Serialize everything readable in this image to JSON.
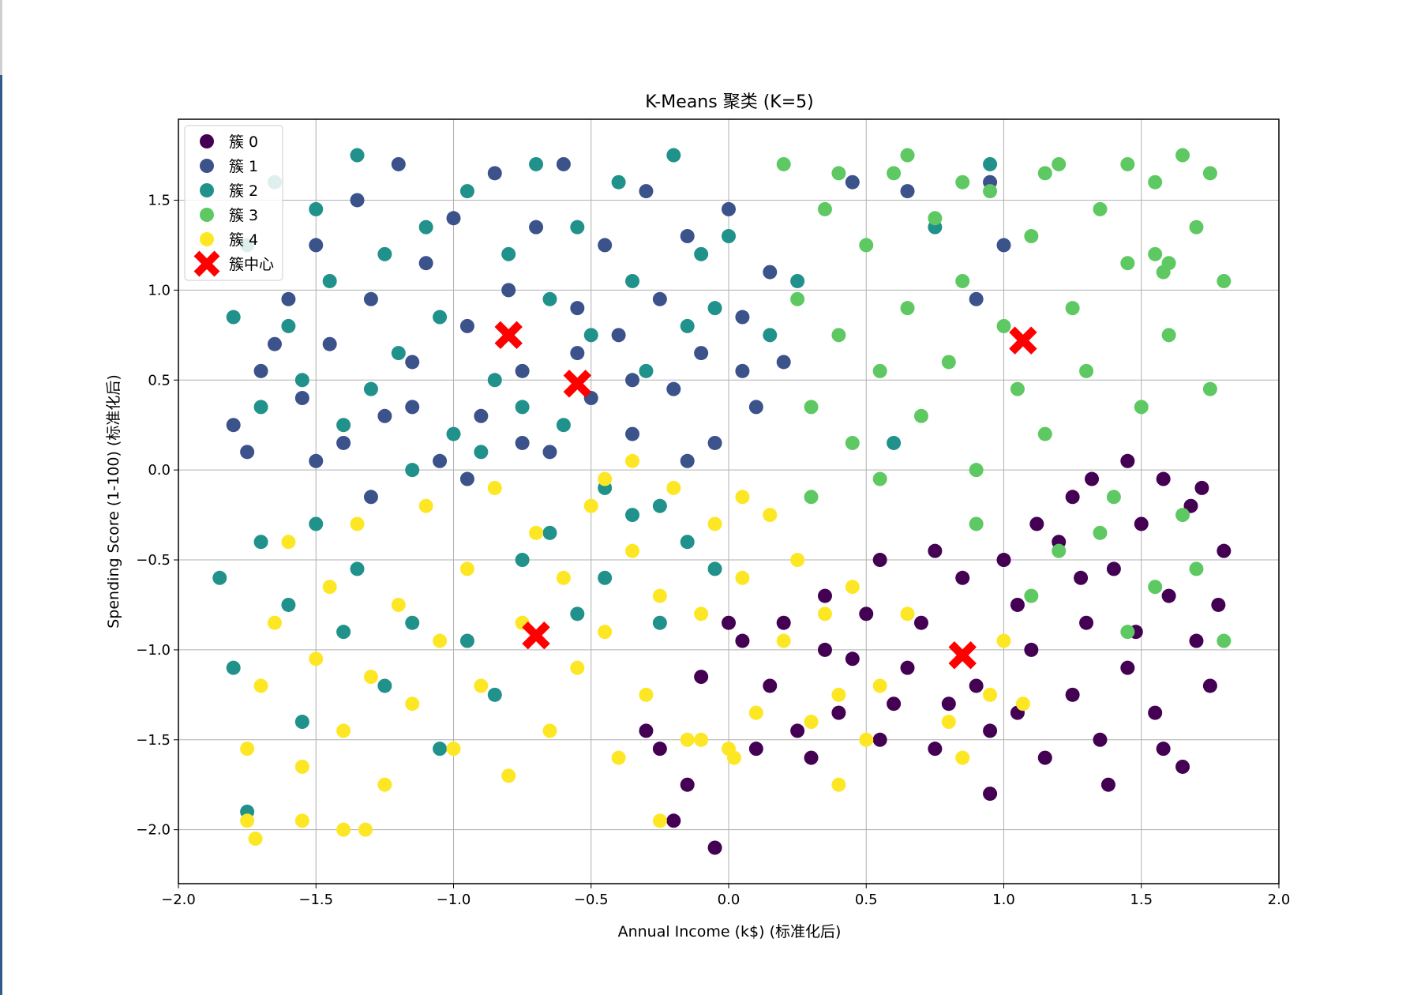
{
  "chart_data": {
    "type": "scatter",
    "title": "K-Means 聚类 (K=5)",
    "xlabel": "Annual Income (k$) (标准化后)",
    "ylabel": "Spending Score (1-100) (标准化后)",
    "xlim": [
      -2.0,
      2.0
    ],
    "ylim": [
      -2.3,
      1.95
    ],
    "xticks": [
      -2.0,
      -1.5,
      -1.0,
      -0.5,
      0.0,
      0.5,
      1.0,
      1.5,
      2.0
    ],
    "xtick_labels": [
      "−2.0",
      "−1.5",
      "−1.0",
      "−0.5",
      "0.0",
      "0.5",
      "1.0",
      "1.5",
      "2.0"
    ],
    "yticks": [
      -2.0,
      -1.5,
      -1.0,
      -0.5,
      0.0,
      0.5,
      1.0,
      1.5
    ],
    "ytick_labels": [
      "−2.0",
      "−1.5",
      "−1.0",
      "−0.5",
      "0.0",
      "0.5",
      "1.0",
      "1.5"
    ],
    "grid": true,
    "legend_position": "top-left",
    "series": [
      {
        "name": "簇 0",
        "color": "#440154",
        "points": [
          [
            0.05,
            -0.95
          ],
          [
            0.15,
            -1.2
          ],
          [
            0.25,
            -1.45
          ],
          [
            0.35,
            -0.7
          ],
          [
            0.45,
            -1.05
          ],
          [
            0.55,
            -0.5
          ],
          [
            0.6,
            -1.3
          ],
          [
            0.7,
            -0.85
          ],
          [
            0.75,
            -1.55
          ],
          [
            0.85,
            -0.6
          ],
          [
            0.9,
            -1.2
          ],
          [
            0.95,
            -1.45
          ],
          [
            1.05,
            -0.75
          ],
          [
            1.1,
            -1.0
          ],
          [
            1.15,
            -1.6
          ],
          [
            1.2,
            -0.4
          ],
          [
            1.25,
            -1.25
          ],
          [
            1.3,
            -0.85
          ],
          [
            1.35,
            -1.5
          ],
          [
            1.4,
            -0.55
          ],
          [
            1.45,
            -1.1
          ],
          [
            1.5,
            -0.3
          ],
          [
            1.55,
            -1.35
          ],
          [
            1.6,
            -0.7
          ],
          [
            1.65,
            -1.65
          ],
          [
            1.7,
            -0.95
          ],
          [
            1.75,
            -1.2
          ],
          [
            1.8,
            -0.45
          ],
          [
            0.2,
            -0.85
          ],
          [
            0.3,
            -1.6
          ],
          [
            0.4,
            -1.35
          ],
          [
            0.5,
            -0.8
          ],
          [
            0.65,
            -1.1
          ],
          [
            0.8,
            -1.3
          ],
          [
            1.0,
            -0.5
          ],
          [
            1.12,
            -0.3
          ],
          [
            1.28,
            -0.6
          ],
          [
            1.38,
            -1.75
          ],
          [
            1.48,
            -0.9
          ],
          [
            1.58,
            -1.55
          ],
          [
            1.68,
            -0.2
          ],
          [
            1.78,
            -0.75
          ],
          [
            -0.2,
            -1.95
          ],
          [
            -0.05,
            -2.1
          ],
          [
            -0.25,
            -1.55
          ],
          [
            -0.1,
            -1.15
          ],
          [
            0.0,
            -0.85
          ],
          [
            -0.3,
            -1.45
          ],
          [
            -0.15,
            -1.75
          ],
          [
            0.1,
            -1.55
          ],
          [
            0.35,
            -1.0
          ],
          [
            0.55,
            -1.5
          ],
          [
            0.75,
            -0.45
          ],
          [
            0.95,
            -1.8
          ],
          [
            1.05,
            -1.35
          ],
          [
            1.25,
            -0.15
          ],
          [
            1.32,
            -0.05
          ],
          [
            1.45,
            0.05
          ],
          [
            1.72,
            -0.1
          ],
          [
            1.58,
            -0.05
          ]
        ]
      },
      {
        "name": "簇 1",
        "color": "#3b528b",
        "points": [
          [
            -1.8,
            0.25
          ],
          [
            -1.75,
            0.1
          ],
          [
            -1.7,
            0.55
          ],
          [
            -1.6,
            0.95
          ],
          [
            -1.55,
            0.4
          ],
          [
            -1.5,
            1.25
          ],
          [
            -1.45,
            0.7
          ],
          [
            -1.4,
            0.15
          ],
          [
            -1.35,
            1.5
          ],
          [
            -1.3,
            0.95
          ],
          [
            -1.25,
            0.3
          ],
          [
            -1.2,
            1.7
          ],
          [
            -1.15,
            0.6
          ],
          [
            -1.1,
            1.15
          ],
          [
            -1.05,
            0.05
          ],
          [
            -1.0,
            1.4
          ],
          [
            -0.95,
            0.8
          ],
          [
            -0.9,
            0.3
          ],
          [
            -0.85,
            1.65
          ],
          [
            -0.8,
            1.0
          ],
          [
            -0.75,
            0.55
          ],
          [
            -0.7,
            1.35
          ],
          [
            -0.65,
            0.1
          ],
          [
            -0.6,
            1.7
          ],
          [
            -0.55,
            0.9
          ],
          [
            -0.5,
            0.4
          ],
          [
            -0.45,
            1.25
          ],
          [
            -0.4,
            0.75
          ],
          [
            -0.35,
            0.2
          ],
          [
            -0.3,
            1.55
          ],
          [
            -0.25,
            0.95
          ],
          [
            -0.2,
            0.45
          ],
          [
            -0.15,
            1.3
          ],
          [
            -0.1,
            0.65
          ],
          [
            -0.05,
            0.15
          ],
          [
            0.0,
            1.45
          ],
          [
            0.05,
            0.85
          ],
          [
            0.1,
            0.35
          ],
          [
            0.15,
            1.1
          ],
          [
            0.2,
            0.6
          ],
          [
            -1.65,
            0.7
          ],
          [
            -1.5,
            0.05
          ],
          [
            -1.3,
            -0.15
          ],
          [
            -1.15,
            0.35
          ],
          [
            -0.95,
            -0.05
          ],
          [
            -0.75,
            0.15
          ],
          [
            -0.55,
            0.65
          ],
          [
            -0.35,
            0.5
          ],
          [
            -0.15,
            0.05
          ],
          [
            0.05,
            0.55
          ],
          [
            0.45,
            1.6
          ],
          [
            0.65,
            1.55
          ],
          [
            0.95,
            1.6
          ],
          [
            1.0,
            1.25
          ],
          [
            0.9,
            0.95
          ]
        ]
      },
      {
        "name": "簇 2",
        "color": "#21918c",
        "points": [
          [
            -1.8,
            0.85
          ],
          [
            -1.75,
            1.25
          ],
          [
            -1.7,
            0.35
          ],
          [
            -1.65,
            1.6
          ],
          [
            -1.6,
            0.8
          ],
          [
            -1.55,
            0.5
          ],
          [
            -1.5,
            1.45
          ],
          [
            -1.45,
            1.05
          ],
          [
            -1.4,
            0.25
          ],
          [
            -1.35,
            1.75
          ],
          [
            -1.3,
            0.45
          ],
          [
            -1.25,
            1.2
          ],
          [
            -1.2,
            0.65
          ],
          [
            -1.15,
            0.0
          ],
          [
            -1.1,
            1.35
          ],
          [
            -1.05,
            0.85
          ],
          [
            -1.0,
            0.2
          ],
          [
            -0.95,
            1.55
          ],
          [
            -0.9,
            0.1
          ],
          [
            -0.85,
            0.5
          ],
          [
            -0.8,
            1.2
          ],
          [
            -0.75,
            0.35
          ],
          [
            -0.7,
            1.7
          ],
          [
            -0.65,
            0.95
          ],
          [
            -0.6,
            0.25
          ],
          [
            -0.55,
            1.35
          ],
          [
            -0.5,
            0.75
          ],
          [
            -0.45,
            -0.1
          ],
          [
            -0.4,
            1.6
          ],
          [
            -0.35,
            1.05
          ],
          [
            -0.3,
            0.55
          ],
          [
            -0.25,
            -0.2
          ],
          [
            -0.2,
            1.75
          ],
          [
            -0.15,
            0.8
          ],
          [
            -0.1,
            1.2
          ],
          [
            -0.05,
            0.9
          ],
          [
            0.0,
            1.3
          ],
          [
            0.15,
            0.75
          ],
          [
            0.25,
            1.05
          ],
          [
            -1.85,
            -0.6
          ],
          [
            -1.8,
            -1.1
          ],
          [
            -1.75,
            -1.9
          ],
          [
            -1.7,
            -0.4
          ],
          [
            -1.6,
            -0.75
          ],
          [
            -1.55,
            -1.4
          ],
          [
            -1.5,
            -0.3
          ],
          [
            -1.4,
            -0.9
          ],
          [
            -1.35,
            -0.55
          ],
          [
            -1.25,
            -1.2
          ],
          [
            -1.15,
            -0.85
          ],
          [
            -1.05,
            -1.55
          ],
          [
            -0.95,
            -0.95
          ],
          [
            -0.85,
            -1.25
          ],
          [
            -0.75,
            -0.5
          ],
          [
            -0.65,
            -0.35
          ],
          [
            -0.55,
            -0.8
          ],
          [
            -0.45,
            -0.6
          ],
          [
            -0.35,
            -0.25
          ],
          [
            -0.25,
            -0.85
          ],
          [
            -0.15,
            -0.4
          ],
          [
            -0.05,
            -0.55
          ],
          [
            0.6,
            0.15
          ],
          [
            0.75,
            1.35
          ],
          [
            0.95,
            1.7
          ]
        ]
      },
      {
        "name": "簇 3",
        "color": "#5ec962",
        "points": [
          [
            0.2,
            1.7
          ],
          [
            0.25,
            0.95
          ],
          [
            0.3,
            0.35
          ],
          [
            0.35,
            1.45
          ],
          [
            0.4,
            0.75
          ],
          [
            0.45,
            0.15
          ],
          [
            0.5,
            1.25
          ],
          [
            0.55,
            0.55
          ],
          [
            0.6,
            1.65
          ],
          [
            0.65,
            0.9
          ],
          [
            0.7,
            0.3
          ],
          [
            0.75,
            1.4
          ],
          [
            0.8,
            0.6
          ],
          [
            0.85,
            1.05
          ],
          [
            0.9,
            0.0
          ],
          [
            0.95,
            1.55
          ],
          [
            1.0,
            0.8
          ],
          [
            1.05,
            0.45
          ],
          [
            1.1,
            1.3
          ],
          [
            1.15,
            0.2
          ],
          [
            1.2,
            1.7
          ],
          [
            1.25,
            0.9
          ],
          [
            1.3,
            0.55
          ],
          [
            1.35,
            1.45
          ],
          [
            1.4,
            -0.15
          ],
          [
            1.45,
            1.15
          ],
          [
            1.5,
            0.35
          ],
          [
            1.55,
            1.6
          ],
          [
            1.6,
            0.75
          ],
          [
            1.65,
            -0.25
          ],
          [
            1.7,
            1.35
          ],
          [
            1.75,
            0.45
          ],
          [
            1.8,
            1.05
          ],
          [
            0.3,
            -0.15
          ],
          [
            0.55,
            -0.05
          ],
          [
            0.9,
            -0.3
          ],
          [
            1.2,
            -0.45
          ],
          [
            1.35,
            -0.35
          ],
          [
            1.55,
            -0.65
          ],
          [
            1.7,
            -0.55
          ],
          [
            1.8,
            -0.95
          ],
          [
            1.45,
            -0.9
          ],
          [
            1.1,
            -0.7
          ],
          [
            0.4,
            1.65
          ],
          [
            0.65,
            1.75
          ],
          [
            0.85,
            1.6
          ],
          [
            1.15,
            1.65
          ],
          [
            1.45,
            1.7
          ],
          [
            1.65,
            1.75
          ],
          [
            1.75,
            1.65
          ],
          [
            1.6,
            1.15
          ],
          [
            1.55,
            1.2
          ],
          [
            1.58,
            1.1
          ]
        ]
      },
      {
        "name": "簇 4",
        "color": "#fde725",
        "points": [
          [
            -1.75,
            -1.55
          ],
          [
            -1.7,
            -1.2
          ],
          [
            -1.65,
            -0.85
          ],
          [
            -1.6,
            -0.4
          ],
          [
            -1.55,
            -1.65
          ],
          [
            -1.5,
            -1.05
          ],
          [
            -1.45,
            -0.65
          ],
          [
            -1.4,
            -1.45
          ],
          [
            -1.35,
            -0.3
          ],
          [
            -1.3,
            -1.15
          ],
          [
            -1.25,
            -1.75
          ],
          [
            -1.2,
            -0.75
          ],
          [
            -1.15,
            -1.3
          ],
          [
            -1.1,
            -0.2
          ],
          [
            -1.05,
            -0.95
          ],
          [
            -1.0,
            -1.55
          ],
          [
            -0.95,
            -0.55
          ],
          [
            -0.9,
            -1.2
          ],
          [
            -0.85,
            -0.1
          ],
          [
            -0.8,
            -1.7
          ],
          [
            -0.75,
            -0.85
          ],
          [
            -0.7,
            -0.35
          ],
          [
            -0.65,
            -1.45
          ],
          [
            -0.6,
            -0.6
          ],
          [
            -0.55,
            -1.1
          ],
          [
            -0.5,
            -0.2
          ],
          [
            -0.45,
            -0.9
          ],
          [
            -0.4,
            -1.6
          ],
          [
            -0.35,
            -0.45
          ],
          [
            -0.3,
            -1.25
          ],
          [
            -0.25,
            -0.7
          ],
          [
            -0.2,
            -0.1
          ],
          [
            -0.15,
            -1.5
          ],
          [
            -0.1,
            -0.8
          ],
          [
            -0.05,
            -0.3
          ],
          [
            0.0,
            -1.55
          ],
          [
            0.05,
            -0.6
          ],
          [
            0.1,
            -1.35
          ],
          [
            0.15,
            -0.25
          ],
          [
            0.2,
            -0.95
          ],
          [
            0.25,
            -0.5
          ],
          [
            0.3,
            -1.4
          ],
          [
            0.35,
            -0.8
          ],
          [
            0.4,
            -1.25
          ],
          [
            0.45,
            -0.65
          ],
          [
            0.5,
            -1.5
          ],
          [
            0.55,
            -1.2
          ],
          [
            0.65,
            -0.8
          ],
          [
            0.8,
            -1.4
          ],
          [
            0.85,
            -1.6
          ],
          [
            0.95,
            -1.25
          ],
          [
            1.0,
            -0.95
          ],
          [
            1.07,
            -1.3
          ],
          [
            -1.75,
            -1.95
          ],
          [
            -1.72,
            -2.05
          ],
          [
            -1.4,
            -2.0
          ],
          [
            -1.32,
            -2.0
          ],
          [
            -1.55,
            -1.95
          ],
          [
            -0.25,
            -1.95
          ],
          [
            0.4,
            -1.75
          ],
          [
            -0.45,
            -0.05
          ],
          [
            -0.35,
            0.05
          ],
          [
            0.05,
            -0.15
          ],
          [
            -0.1,
            -1.5
          ],
          [
            0.02,
            -1.6
          ]
        ]
      }
    ],
    "centers": {
      "name": "簇中心",
      "color": "#ff0000",
      "points": [
        [
          -0.8,
          0.75
        ],
        [
          -0.55,
          0.48
        ],
        [
          -0.7,
          -0.92
        ],
        [
          0.85,
          -1.03
        ],
        [
          1.07,
          0.72
        ]
      ]
    }
  }
}
